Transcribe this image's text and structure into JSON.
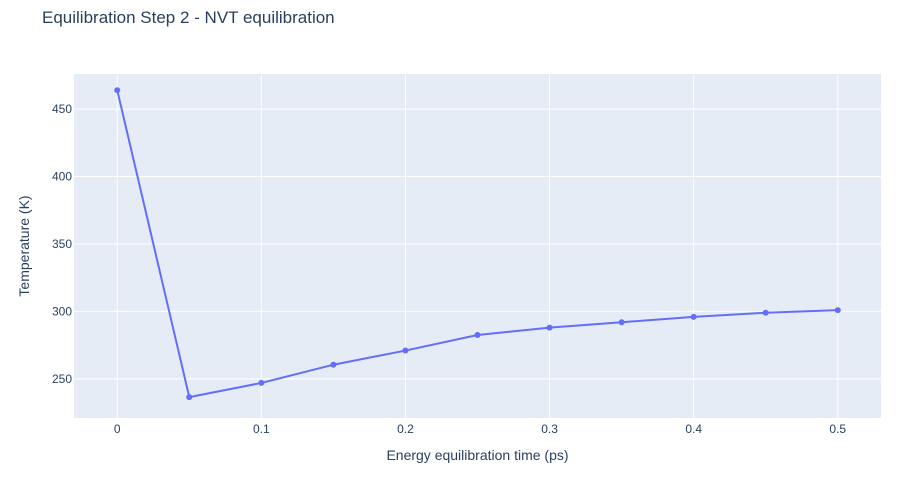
{
  "chart_data": {
    "type": "line",
    "title": "Equilibration Step 2 - NVT equilibration",
    "xlabel": "Energy equilibration time (ps)",
    "ylabel": "Temperature (K)",
    "xlim": [
      -0.03,
      0.53
    ],
    "ylim": [
      221,
      476
    ],
    "xticks": [
      0,
      0.1,
      0.2,
      0.3,
      0.4,
      0.5
    ],
    "xtick_labels": [
      "0",
      "0.1",
      "0.2",
      "0.3",
      "0.4",
      "0.5"
    ],
    "yticks": [
      250,
      300,
      350,
      400,
      450
    ],
    "ytick_labels": [
      "250",
      "300",
      "350",
      "400",
      "450"
    ],
    "grid": true,
    "legend": false,
    "series": [
      {
        "color": "#636efa",
        "x": [
          0,
          0.05,
          0.1,
          0.15,
          0.2,
          0.25,
          0.3,
          0.35,
          0.4,
          0.45,
          0.5
        ],
        "y": [
          464,
          236.5,
          247,
          260.5,
          271,
          282.5,
          288,
          292,
          296,
          299,
          301
        ]
      }
    ]
  }
}
